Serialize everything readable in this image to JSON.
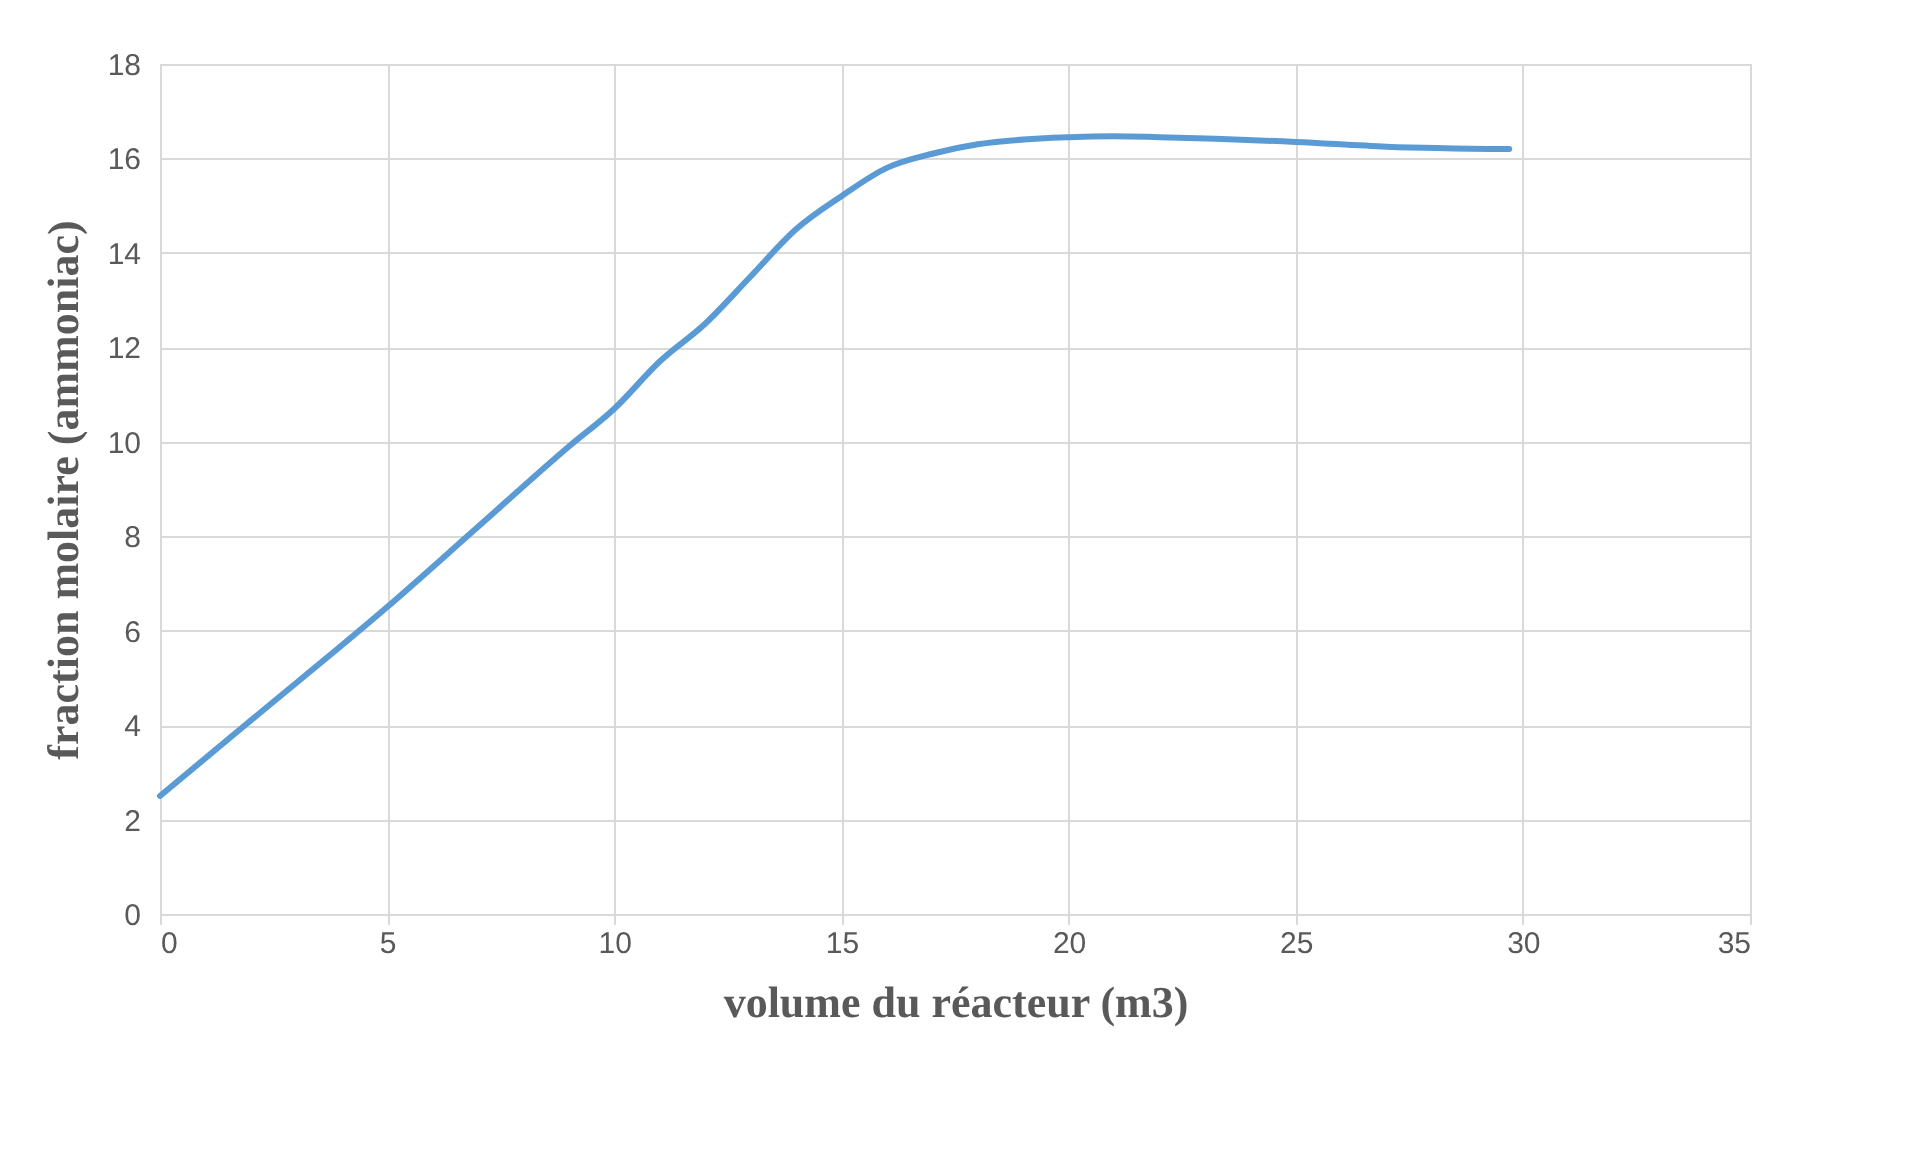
{
  "chart_data": {
    "type": "line",
    "xlabel": "volume du réacteur (m3)",
    "ylabel": "fraction molaire (ammoniac)",
    "x": [
      0,
      2,
      5,
      7,
      9,
      10,
      11,
      12,
      13,
      14,
      15,
      16,
      17,
      18,
      20,
      21,
      22,
      25,
      27,
      29.7
    ],
    "series": [
      {
        "color": "#5b9bd5",
        "values": [
          2.5,
          4.1,
          6.5,
          8.2,
          9.9,
          10.7,
          11.7,
          12.5,
          13.5,
          14.5,
          15.2,
          15.8,
          16.1,
          16.3,
          16.45,
          16.47,
          16.45,
          16.35,
          16.25,
          16.2
        ]
      }
    ],
    "xlim": [
      0,
      35
    ],
    "xticks": [
      0,
      5,
      10,
      15,
      20,
      25,
      30,
      35
    ],
    "ylim": [
      0,
      18
    ],
    "yticks": [
      0,
      2,
      4,
      6,
      8,
      10,
      12,
      14,
      16,
      18
    ],
    "grid": true,
    "marker": "none",
    "line_style": "solid"
  }
}
